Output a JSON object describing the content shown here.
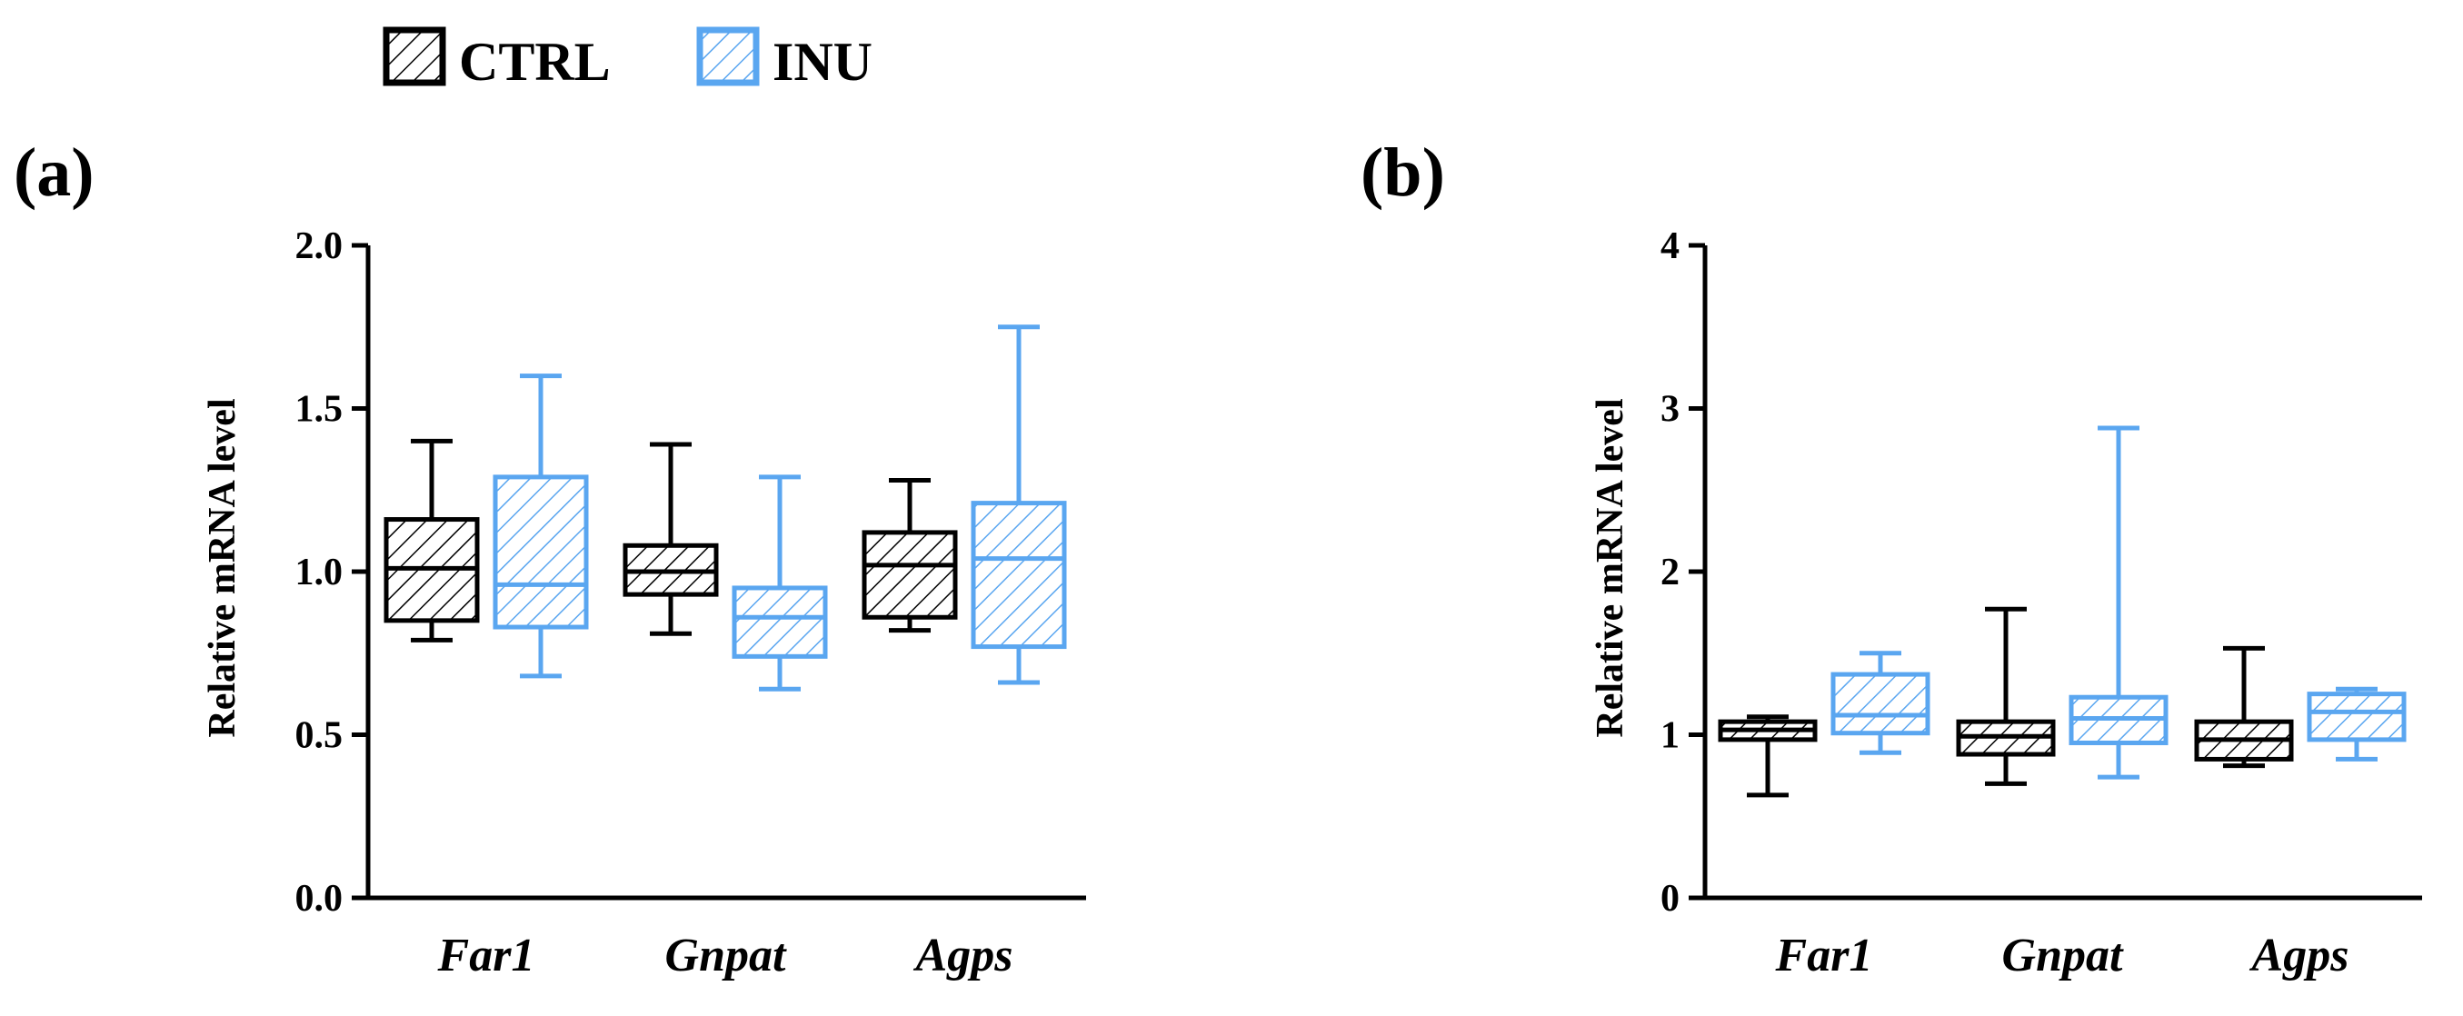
{
  "legend": [
    {
      "label": "CTRL",
      "color": "#000000"
    },
    {
      "label": "INU",
      "color": "#5aa6f0"
    }
  ],
  "chart_data": [
    {
      "panel": "(a)",
      "type": "boxplot",
      "ylabel": "Relative mRNA level",
      "ylim": [
        0,
        2.0
      ],
      "yticks": [
        0.0,
        0.5,
        1.0,
        1.5,
        2.0
      ],
      "ytick_labels": [
        "0.0",
        "0.5",
        "1.0",
        "1.5",
        "2.0"
      ],
      "categories": [
        "Far1",
        "Gnpat",
        "Agps"
      ],
      "series": [
        {
          "name": "CTRL",
          "color": "#000000",
          "boxes": [
            {
              "min": 0.79,
              "q1": 0.85,
              "median": 1.01,
              "q3": 1.16,
              "max": 1.4
            },
            {
              "min": 0.81,
              "q1": 0.93,
              "median": 1.0,
              "q3": 1.08,
              "max": 1.39
            },
            {
              "min": 0.82,
              "q1": 0.86,
              "median": 1.02,
              "q3": 1.12,
              "max": 1.28
            }
          ]
        },
        {
          "name": "INU",
          "color": "#5aa6f0",
          "boxes": [
            {
              "min": 0.68,
              "q1": 0.83,
              "median": 0.96,
              "q3": 1.29,
              "max": 1.6
            },
            {
              "min": 0.64,
              "q1": 0.74,
              "median": 0.86,
              "q3": 0.95,
              "max": 1.29
            },
            {
              "min": 0.66,
              "q1": 0.77,
              "median": 1.04,
              "q3": 1.21,
              "max": 1.75
            }
          ]
        }
      ]
    },
    {
      "panel": "(b)",
      "type": "boxplot",
      "ylabel": "Relative mRNA level",
      "ylim": [
        0,
        4
      ],
      "yticks": [
        0,
        1,
        2,
        3,
        4
      ],
      "ytick_labels": [
        "0",
        "1",
        "2",
        "3",
        "4"
      ],
      "categories": [
        "Far1",
        "Gnpat",
        "Agps"
      ],
      "series": [
        {
          "name": "CTRL",
          "color": "#000000",
          "boxes": [
            {
              "min": 0.63,
              "q1": 0.97,
              "median": 1.03,
              "q3": 1.08,
              "max": 1.11
            },
            {
              "min": 0.7,
              "q1": 0.88,
              "median": 0.99,
              "q3": 1.08,
              "max": 1.77
            },
            {
              "min": 0.81,
              "q1": 0.85,
              "median": 0.97,
              "q3": 1.08,
              "max": 1.53
            }
          ]
        },
        {
          "name": "INU",
          "color": "#5aa6f0",
          "boxes": [
            {
              "min": 0.89,
              "q1": 1.01,
              "median": 1.12,
              "q3": 1.37,
              "max": 1.5
            },
            {
              "min": 0.74,
              "q1": 0.95,
              "median": 1.1,
              "q3": 1.23,
              "max": 2.88
            },
            {
              "min": 0.85,
              "q1": 0.97,
              "median": 1.14,
              "q3": 1.25,
              "max": 1.28
            }
          ]
        }
      ]
    }
  ]
}
